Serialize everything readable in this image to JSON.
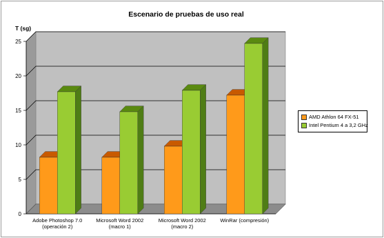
{
  "chart_data": {
    "type": "bar",
    "title": "Escenario de pruebas de uso real",
    "ylabel": "T (sg)",
    "xlabel": "",
    "ylim": [
      0,
      25
    ],
    "yticks": [
      0,
      5,
      10,
      15,
      20,
      25
    ],
    "grid": true,
    "legend_position": "right",
    "categories": [
      [
        "Adobe Photoshop 7.0",
        "(operación 2)"
      ],
      [
        "Microsoft Word 2002",
        "(macro 1)"
      ],
      [
        "Microsoft Word 2002",
        "(macro 2)"
      ],
      [
        "WinRar (compresión)"
      ]
    ],
    "series": [
      {
        "name": "AMD Athlon 64 FX-51",
        "values": [
          8.2,
          8.2,
          9.8,
          17.2
        ],
        "color": "#ff9a1a",
        "top_color": "#c85a00",
        "side_color": "#b85800"
      },
      {
        "name": "Intel Pentium 4 a 3,2 GHz",
        "values": [
          17.7,
          14.8,
          17.9,
          24.7
        ],
        "color": "#99cc33",
        "top_color": "#5a8a10",
        "side_color": "#4f7d15"
      }
    ]
  }
}
